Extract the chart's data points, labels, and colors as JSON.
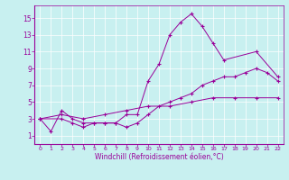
{
  "xlabel": "Windchill (Refroidissement éolien,°C)",
  "background_color": "#c8f0f0",
  "line_color": "#990099",
  "xlim": [
    -0.5,
    22.5
  ],
  "ylim": [
    0,
    16.5
  ],
  "xticks": [
    0,
    1,
    2,
    3,
    4,
    5,
    6,
    7,
    8,
    9,
    10,
    11,
    12,
    13,
    14,
    15,
    16,
    17,
    18,
    19,
    20,
    21,
    22
  ],
  "yticks": [
    1,
    3,
    5,
    7,
    9,
    11,
    13,
    15
  ],
  "series": [
    {
      "x": [
        0,
        1,
        2,
        3,
        4,
        5,
        6,
        7,
        8,
        9,
        10,
        11,
        12,
        13,
        14,
        15,
        16,
        17,
        20,
        22
      ],
      "y": [
        3,
        1.5,
        4,
        3,
        2.5,
        2.5,
        2.5,
        2.5,
        3.5,
        3.5,
        7.5,
        9.5,
        13,
        14.5,
        15.5,
        14,
        12,
        10,
        11,
        8
      ]
    },
    {
      "x": [
        0,
        2,
        3,
        4,
        5,
        6,
        7,
        8,
        9,
        10,
        11,
        12,
        13,
        14,
        15,
        16,
        17,
        18,
        19,
        20,
        21,
        22
      ],
      "y": [
        3,
        3,
        2.5,
        2,
        2.5,
        2.5,
        2.5,
        2,
        2.5,
        3.5,
        4.5,
        5,
        5.5,
        6,
        7,
        7.5,
        8,
        8,
        8.5,
        9,
        8.5,
        7.5
      ]
    },
    {
      "x": [
        0,
        2,
        4,
        6,
        8,
        10,
        12,
        14,
        16,
        18,
        20,
        22
      ],
      "y": [
        3,
        3.5,
        3,
        3.5,
        4,
        4.5,
        4.5,
        5,
        5.5,
        5.5,
        5.5,
        5.5
      ]
    }
  ]
}
